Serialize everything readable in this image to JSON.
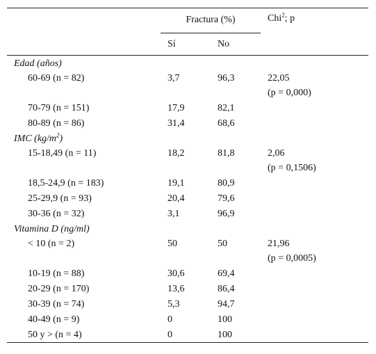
{
  "header": {
    "group": "Fractura (%)",
    "chi": {
      "text": "Chi",
      "sup": "2",
      "suffix": "; p"
    },
    "columns": [
      "Sí",
      "No"
    ]
  },
  "sections": [
    {
      "title": "Edad (años)",
      "rows": [
        {
          "label": "60-69 (n = 82)",
          "si": "3,7",
          "no": "96,3",
          "chi": "22,05",
          "p": "(p = 0,000)"
        },
        {
          "label": "70-79 (n = 151)",
          "si": "17,9",
          "no": "82,1"
        },
        {
          "label": "80-89 (n = 86)",
          "si": "31,4",
          "no": "68,6"
        }
      ]
    },
    {
      "title": "IMC (kg/m",
      "sup": "2",
      "suffix": ")",
      "rows": [
        {
          "label": "15-18,49 (n = 11)",
          "si": "18,2",
          "no": "81,8",
          "chi": "2,06",
          "p": "(p = 0,1506)"
        },
        {
          "label": "18,5-24,9 (n = 183)",
          "si": "19,1",
          "no": "80,9"
        },
        {
          "label": "25-29,9 (n = 93)",
          "si": "20,4",
          "no": "79,6"
        },
        {
          "label": "30-36 (n = 32)",
          "si": "3,1",
          "no": "96,9"
        }
      ]
    },
    {
      "title": "Vitamina D (ng/ml)",
      "rows": [
        {
          "label": "< 10 (n = 2)",
          "si": "50",
          "no": "50",
          "chi": "21,96",
          "p": "(p = 0,0005)"
        },
        {
          "label": "10-19 (n = 88)",
          "si": "30,6",
          "no": "69,4"
        },
        {
          "label": "20-29 (n = 170)",
          "si": "13,6",
          "no": "86,4"
        },
        {
          "label": "30-39 (n = 74)",
          "si": "5,3",
          "no": "94,7"
        },
        {
          "label": "40-49 (n = 9)",
          "si": "0",
          "no": "100"
        },
        {
          "label": "50 y > (n = 4)",
          "si": "0",
          "no": "100"
        }
      ]
    }
  ]
}
